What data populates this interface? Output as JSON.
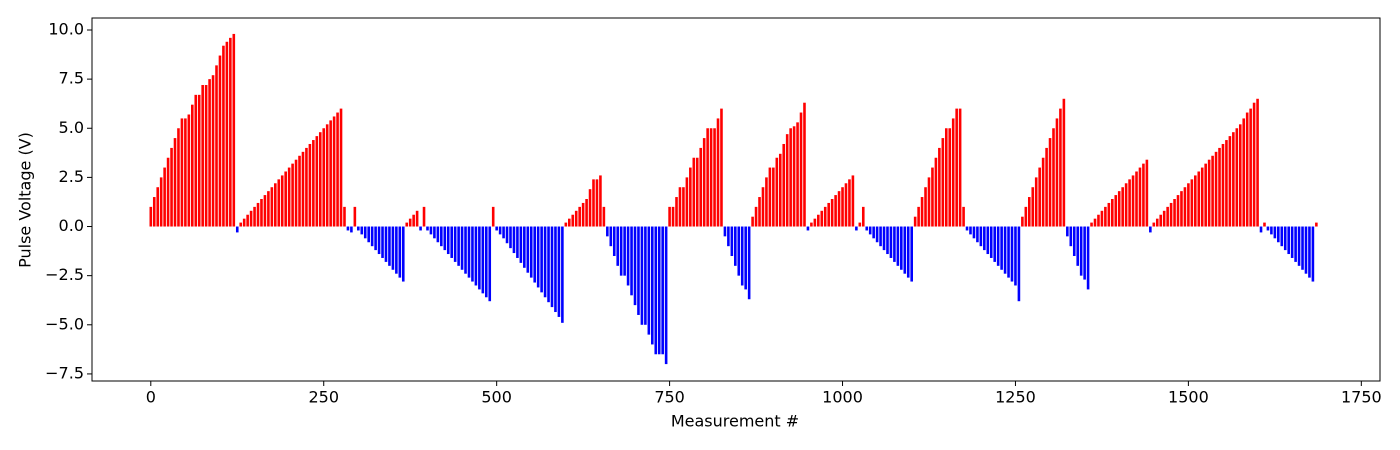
{
  "chart_data": {
    "type": "bar",
    "xlabel": "Measurement #",
    "ylabel": "Pulse Voltage (V)",
    "positive_color": "#ff0000",
    "negative_color": "#0000ff",
    "xlim": [
      -85,
      1777
    ],
    "ylim": [
      -7.86,
      10.61
    ],
    "xticks": [
      0,
      250,
      500,
      750,
      1000,
      1250,
      1500,
      1750
    ],
    "yticks": [
      {
        "value": -7.5,
        "label": "−7.5"
      },
      {
        "value": -5,
        "label": "−5.0"
      },
      {
        "value": -2.5,
        "label": "−2.5"
      },
      {
        "value": 0,
        "label": "0.0"
      },
      {
        "value": 2.5,
        "label": "2.5"
      },
      {
        "value": 5,
        "label": "5.0"
      },
      {
        "value": 7.5,
        "label": "7.5"
      },
      {
        "value": 10,
        "label": "10.0"
      }
    ],
    "x": [
      0,
      5,
      10,
      15,
      20,
      25,
      30,
      35,
      40,
      45,
      50,
      55,
      60,
      65,
      70,
      75,
      80,
      85,
      90,
      95,
      100,
      105,
      110,
      115,
      120,
      125,
      130,
      135,
      140,
      145,
      150,
      155,
      160,
      165,
      170,
      175,
      180,
      185,
      190,
      195,
      200,
      205,
      210,
      215,
      220,
      225,
      230,
      235,
      240,
      245,
      250,
      255,
      260,
      265,
      270,
      275,
      280,
      285,
      290,
      295,
      300,
      305,
      310,
      315,
      320,
      325,
      330,
      335,
      340,
      345,
      350,
      355,
      360,
      365,
      370,
      375,
      380,
      385,
      390,
      395,
      400,
      405,
      410,
      415,
      420,
      425,
      430,
      435,
      440,
      445,
      450,
      455,
      460,
      465,
      470,
      475,
      480,
      485,
      490,
      495,
      500,
      505,
      510,
      515,
      520,
      525,
      530,
      535,
      540,
      545,
      550,
      555,
      560,
      565,
      570,
      575,
      580,
      585,
      590,
      595,
      600,
      605,
      610,
      615,
      620,
      625,
      630,
      635,
      640,
      645,
      650,
      655,
      660,
      665,
      670,
      675,
      680,
      685,
      690,
      695,
      700,
      705,
      710,
      715,
      720,
      725,
      730,
      735,
      740,
      745,
      750,
      755,
      760,
      765,
      770,
      775,
      780,
      785,
      790,
      795,
      800,
      805,
      810,
      815,
      820,
      825,
      830,
      835,
      840,
      845,
      850,
      855,
      860,
      865,
      870,
      875,
      880,
      885,
      890,
      895,
      900,
      905,
      910,
      915,
      920,
      925,
      930,
      935,
      940,
      945,
      950,
      955,
      960,
      965,
      970,
      975,
      980,
      985,
      990,
      995,
      1000,
      1005,
      1010,
      1015,
      1020,
      1025,
      1030,
      1035,
      1040,
      1045,
      1050,
      1055,
      1060,
      1065,
      1070,
      1075,
      1080,
      1085,
      1090,
      1095,
      1100,
      1105,
      1110,
      1115,
      1120,
      1125,
      1130,
      1135,
      1140,
      1145,
      1150,
      1155,
      1160,
      1165,
      1170,
      1175,
      1180,
      1185,
      1190,
      1195,
      1200,
      1205,
      1210,
      1215,
      1220,
      1225,
      1230,
      1235,
      1240,
      1245,
      1250,
      1255,
      1260,
      1265,
      1270,
      1275,
      1280,
      1285,
      1290,
      1295,
      1300,
      1305,
      1310,
      1315,
      1320,
      1325,
      1330,
      1335,
      1340,
      1345,
      1350,
      1355,
      1360,
      1365,
      1370,
      1375,
      1380,
      1385,
      1390,
      1395,
      1400,
      1405,
      1410,
      1415,
      1420,
      1425,
      1430,
      1435,
      1440,
      1445,
      1450,
      1455,
      1460,
      1465,
      1470,
      1475,
      1480,
      1485,
      1490,
      1495,
      1500,
      1505,
      1510,
      1515,
      1520,
      1525,
      1530,
      1535,
      1540,
      1545,
      1550,
      1555,
      1560,
      1565,
      1570,
      1575,
      1580,
      1585,
      1590,
      1595,
      1600,
      1605,
      1610,
      1615,
      1620,
      1625,
      1630,
      1635,
      1640,
      1645,
      1650,
      1655,
      1660,
      1665,
      1670,
      1675,
      1680,
      1685
    ],
    "values": [
      1.0,
      1.5,
      2.0,
      2.5,
      3.0,
      3.5,
      4.0,
      4.5,
      5.0,
      5.5,
      5.5,
      5.7,
      6.2,
      6.7,
      6.7,
      7.2,
      7.2,
      7.5,
      7.7,
      8.2,
      8.7,
      9.2,
      9.4,
      9.6,
      9.8,
      -0.3,
      0.2,
      0.4,
      0.6,
      0.8,
      1.0,
      1.2,
      1.4,
      1.6,
      1.8,
      2.0,
      2.2,
      2.4,
      2.6,
      2.8,
      3.0,
      3.2,
      3.4,
      3.6,
      3.8,
      4.0,
      4.2,
      4.4,
      4.6,
      4.8,
      5.0,
      5.2,
      5.4,
      5.6,
      5.8,
      6.0,
      1.0,
      -0.2,
      -0.3,
      1.0,
      -0.2,
      -0.4,
      -0.6,
      -0.8,
      -1.0,
      -1.2,
      -1.4,
      -1.6,
      -1.8,
      -2.0,
      -2.2,
      -2.4,
      -2.6,
      -2.8,
      0.2,
      0.4,
      0.6,
      0.8,
      -0.2,
      1.0,
      -0.2,
      -0.4,
      -0.6,
      -0.8,
      -1.0,
      -1.2,
      -1.4,
      -1.6,
      -1.8,
      -2.0,
      -2.2,
      -2.4,
      -2.6,
      -2.8,
      -3.0,
      -3.2,
      -3.4,
      -3.6,
      -3.8,
      1.0,
      -0.2,
      -0.4,
      -0.6,
      -0.85,
      -1.1,
      -1.35,
      -1.6,
      -1.85,
      -2.1,
      -2.35,
      -2.6,
      -2.85,
      -3.1,
      -3.35,
      -3.6,
      -3.85,
      -4.1,
      -4.35,
      -4.6,
      -4.9,
      0.2,
      0.4,
      0.6,
      0.8,
      1.0,
      1.2,
      1.4,
      1.9,
      2.4,
      2.4,
      2.6,
      1.0,
      -0.5,
      -1.0,
      -1.5,
      -2.0,
      -2.5,
      -2.5,
      -3.0,
      -3.5,
      -4.0,
      -4.5,
      -5.0,
      -5.0,
      -5.5,
      -6.0,
      -6.5,
      -6.5,
      -6.5,
      -7.0,
      1.0,
      1.0,
      1.5,
      2.0,
      2.0,
      2.5,
      3.0,
      3.5,
      3.5,
      4.0,
      4.5,
      5.0,
      5.0,
      5.0,
      5.5,
      6.0,
      -0.5,
      -1.0,
      -1.5,
      -2.0,
      -2.5,
      -3.0,
      -3.2,
      -3.7,
      0.5,
      1.0,
      1.5,
      2.0,
      2.5,
      3.0,
      3.0,
      3.5,
      3.7,
      4.2,
      4.7,
      5.0,
      5.1,
      5.3,
      5.8,
      6.3,
      -0.2,
      0.2,
      0.4,
      0.6,
      0.8,
      1.0,
      1.2,
      1.4,
      1.6,
      1.8,
      2.0,
      2.2,
      2.4,
      2.6,
      -0.2,
      0.2,
      1.0,
      -0.2,
      -0.4,
      -0.6,
      -0.8,
      -1.0,
      -1.2,
      -1.4,
      -1.6,
      -1.8,
      -2.0,
      -2.2,
      -2.4,
      -2.6,
      -2.8,
      0.5,
      1.0,
      1.5,
      2.0,
      2.5,
      3.0,
      3.5,
      4.0,
      4.5,
      5.0,
      5.0,
      5.5,
      6.0,
      6.0,
      1.0,
      -0.2,
      -0.4,
      -0.6,
      -0.8,
      -1.0,
      -1.2,
      -1.4,
      -1.6,
      -1.8,
      -2.0,
      -2.2,
      -2.4,
      -2.6,
      -2.8,
      -3.0,
      -3.8,
      0.5,
      1.0,
      1.5,
      2.0,
      2.5,
      3.0,
      3.5,
      4.0,
      4.5,
      5.0,
      5.5,
      6.0,
      6.5,
      -0.5,
      -1.0,
      -1.5,
      -2.0,
      -2.5,
      -2.7,
      -3.2,
      0.2,
      0.4,
      0.6,
      0.8,
      1.0,
      1.2,
      1.4,
      1.6,
      1.8,
      2.0,
      2.2,
      2.4,
      2.6,
      2.8,
      3.0,
      3.2,
      3.4,
      -0.3,
      0.2,
      0.4,
      0.6,
      0.8,
      1.0,
      1.2,
      1.4,
      1.6,
      1.8,
      2.0,
      2.2,
      2.4,
      2.6,
      2.8,
      3.0,
      3.2,
      3.4,
      3.6,
      3.8,
      4.0,
      4.2,
      4.4,
      4.6,
      4.8,
      5.0,
      5.2,
      5.5,
      5.8,
      6.0,
      6.3,
      6.5,
      -0.3,
      0.2,
      -0.2,
      -0.4,
      -0.6,
      -0.8,
      -1.0,
      -1.2,
      -1.4,
      -1.6,
      -1.8,
      -2.0,
      -2.2,
      -2.4,
      -2.6,
      -2.8,
      0.2
    ]
  }
}
